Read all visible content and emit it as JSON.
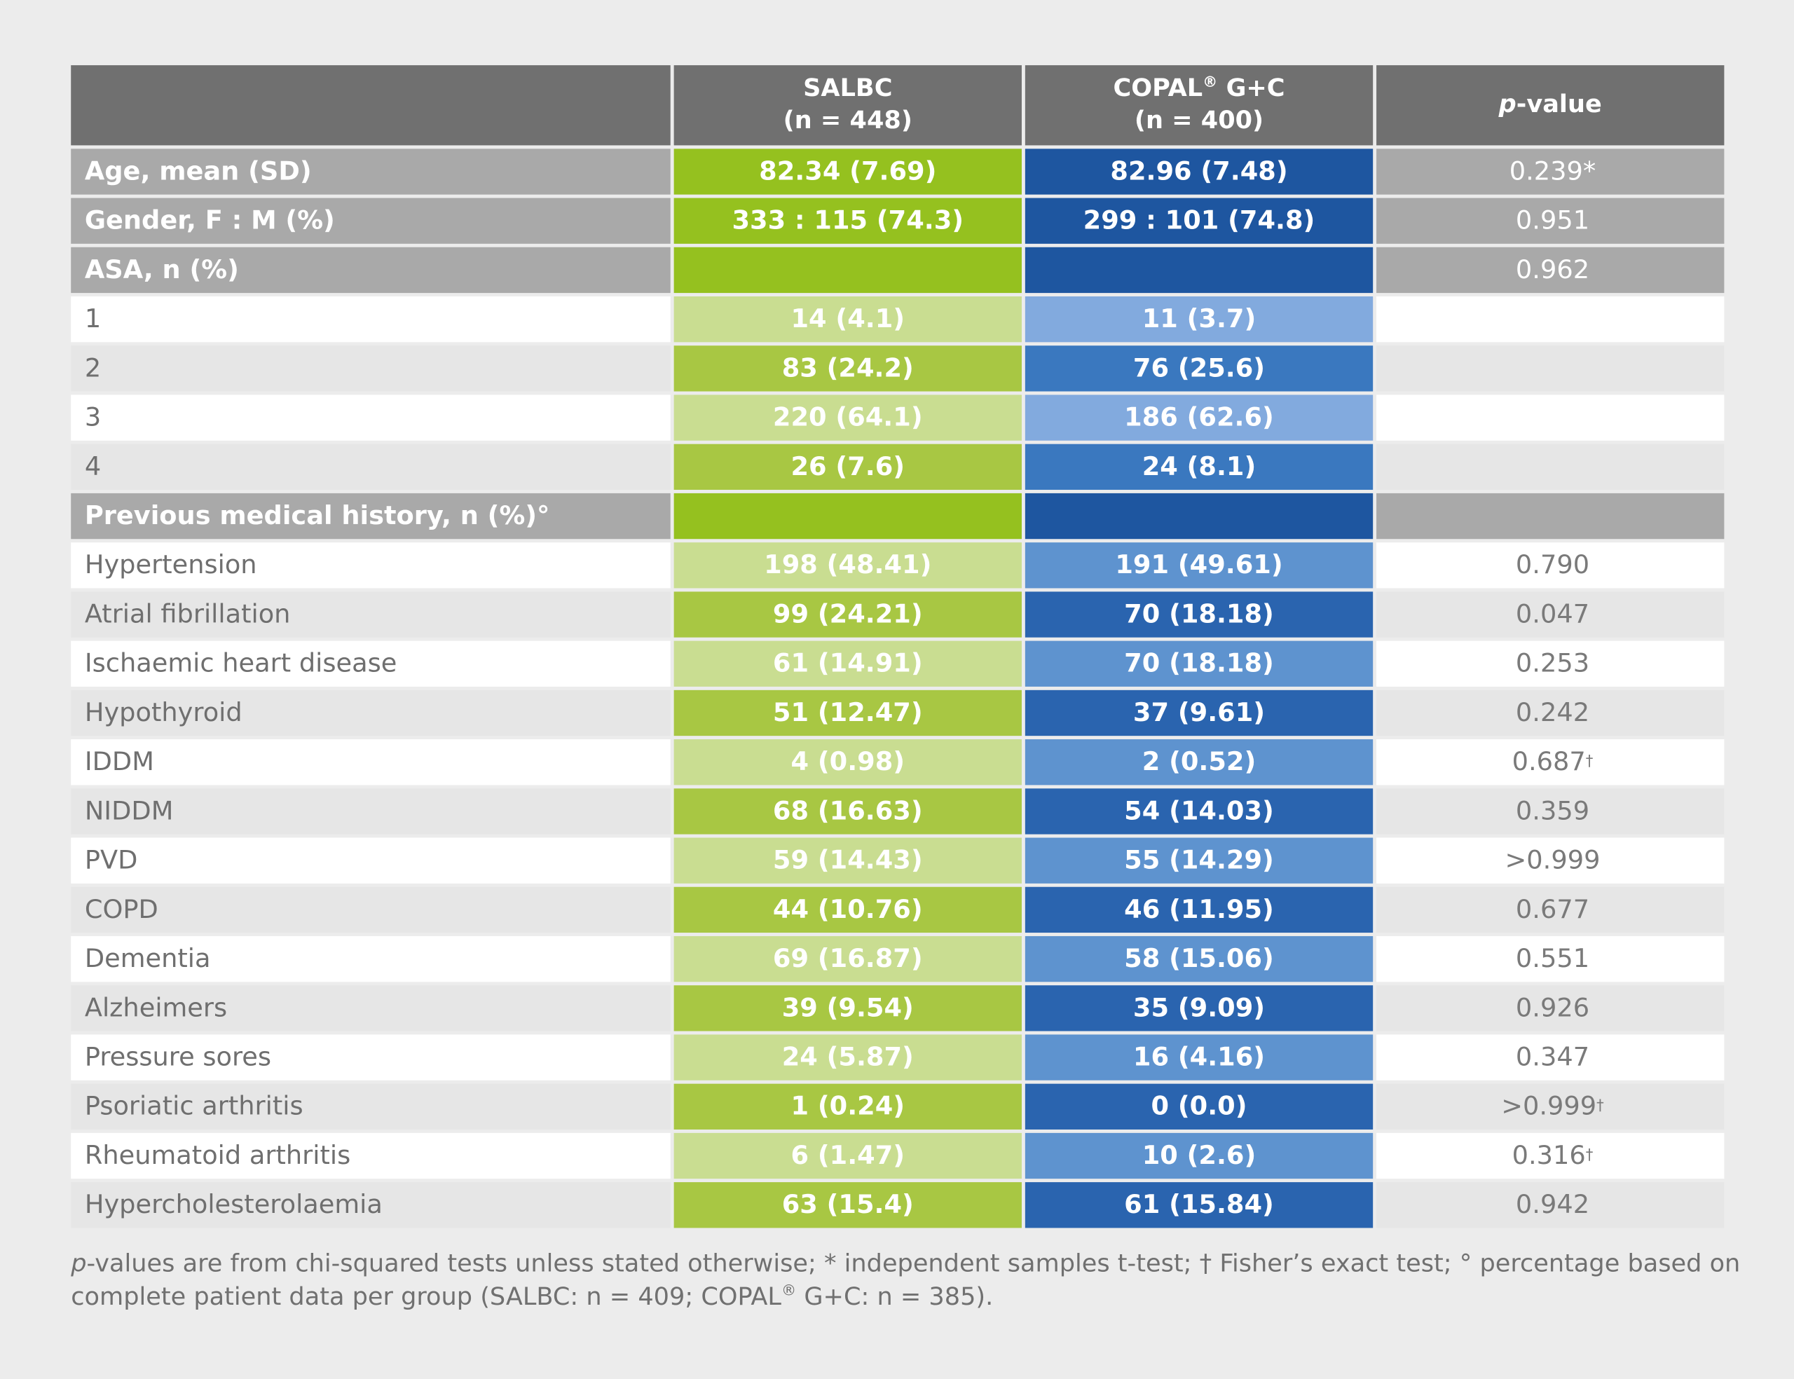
{
  "header": {
    "col1_line1": "SALBC",
    "col1_line2": "(n = 448)",
    "col2_line1": "COPAL",
    "col2_reg": "®",
    "col2_line1b": " G+C",
    "col2_line2": "(n = 400)",
    "col3_italic": "p",
    "col3_rest": "-value"
  },
  "rows": {
    "age": {
      "label": "Age, mean (SD)",
      "salbc": "82.34 (7.69)",
      "copal": "82.96 (7.48)",
      "p": "0.239*"
    },
    "gender": {
      "label": "Gender, F : M (%)",
      "salbc": "333 : 115 (74.3)",
      "copal": "299 : 101 (74.8)",
      "p": "0.951"
    },
    "asa": {
      "label": "ASA, n (%)",
      "salbc": "",
      "copal": "",
      "p": "0.962"
    },
    "asa1": {
      "label": "1",
      "salbc": "14 (4.1)",
      "copal": "11 (3.7)",
      "p": ""
    },
    "asa2": {
      "label": "2",
      "salbc": "83 (24.2)",
      "copal": "76 (25.6)",
      "p": ""
    },
    "asa3": {
      "label": "3",
      "salbc": "220 (64.1)",
      "copal": "186 (62.6)",
      "p": ""
    },
    "asa4": {
      "label": "4",
      "salbc": "26 (7.6)",
      "copal": "24 (8.1)",
      "p": ""
    },
    "pmh": {
      "label": "Previous medical history, n (%)°",
      "salbc": "",
      "copal": "",
      "p": ""
    },
    "hypertension": {
      "label": "Hypertension",
      "salbc": "198 (48.41)",
      "copal": "191 (49.61)",
      "p": "0.790"
    },
    "af": {
      "label": "Atrial fibrillation",
      "salbc": "99 (24.21)",
      "copal": "70 (18.18)",
      "p": "0.047"
    },
    "ihd": {
      "label": "Ischaemic heart disease",
      "salbc": "61 (14.91)",
      "copal": "70 (18.18)",
      "p": "0.253"
    },
    "hypothyroid": {
      "label": "Hypothyroid",
      "salbc": "51 (12.47)",
      "copal": "37 (9.61)",
      "p": "0.242"
    },
    "iddm": {
      "label": "IDDM",
      "salbc": "4 (0.98)",
      "copal": "2 (0.52)",
      "p": "0.687",
      "p_sup": "†"
    },
    "niddm": {
      "label": "NIDDM",
      "salbc": "68 (16.63)",
      "copal": "54 (14.03)",
      "p": "0.359"
    },
    "pvd": {
      "label": "PVD",
      "salbc": "59 (14.43)",
      "copal": "55 (14.29)",
      "p": ">0.999"
    },
    "copd": {
      "label": "COPD",
      "salbc": "44 (10.76)",
      "copal": "46 (11.95)",
      "p": "0.677"
    },
    "dementia": {
      "label": "Dementia",
      "salbc": "69 (16.87)",
      "copal": "58 (15.06)",
      "p": "0.551"
    },
    "alzheimers": {
      "label": "Alzheimers",
      "salbc": "39 (9.54)",
      "copal": "35 (9.09)",
      "p": "0.926"
    },
    "pressure_sores": {
      "label": "Pressure sores",
      "salbc": "24 (5.87)",
      "copal": "16 (4.16)",
      "p": "0.347"
    },
    "psoriatic": {
      "label": "Psoriatic arthritis",
      "salbc": "1 (0.24)",
      "copal": "0 (0.0)",
      "p": ">0.999",
      "p_sup": "†"
    },
    "rheumatoid": {
      "label": "Rheumatoid arthritis",
      "salbc": "6 (1.47)",
      "copal": "10 (2.6)",
      "p": "0.316",
      "p_sup": "†"
    },
    "hyperchol": {
      "label": "Hypercholesterolaemia",
      "salbc": "63 (15.4)",
      "copal": "61 (15.84)",
      "p": "0.942"
    }
  },
  "footnote": {
    "p_italic": "p",
    "text1": "-values are from chi-squared tests unless stated otherwise; * independent samples t-test; † Fisher’s exact test; ° percentage based on complete patient data per group (SALBC: n = 409; COPAL",
    "reg": "®",
    "text2": " G+C: n = 385)."
  },
  "colors": {
    "header_bg": "#707070",
    "section_bg": "#a9a9a9",
    "green_main": "#95c11f",
    "blue_main": "#1e56a0"
  }
}
